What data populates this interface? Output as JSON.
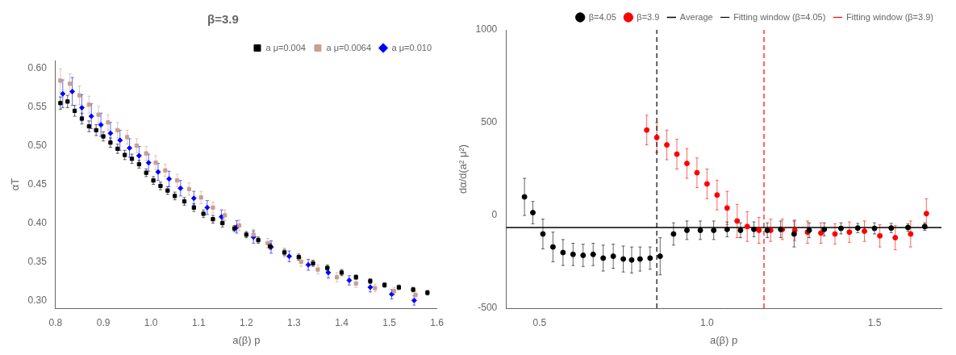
{
  "chart_data": [
    {
      "type": "scatter",
      "title": "β=3.9",
      "xlabel": "a(β) p",
      "ylabel": "αT",
      "xlim": [
        0.8,
        1.6
      ],
      "ylim": [
        0.29,
        0.61
      ],
      "xticks": [
        0.8,
        0.9,
        {
          "value": 1.0,
          "label": "1.0"
        },
        1.1,
        1.2,
        1.3,
        1.4,
        1.5,
        1.6
      ],
      "yticks": [
        {
          "value": 0.3,
          "label": "0.30"
        },
        0.35,
        {
          "value": 0.4,
          "label": "0.40"
        },
        0.45,
        {
          "value": 0.5,
          "label": "0.50"
        },
        0.55,
        {
          "value": 0.6,
          "label": "0.60"
        }
      ],
      "grid": false,
      "legend": "upper right",
      "series": [
        {
          "name": "a μ=0.004",
          "color": "black",
          "marker": "square",
          "x": [
            0.81,
            0.825,
            0.84,
            0.855,
            0.87,
            0.885,
            0.9,
            0.915,
            0.93,
            0.945,
            0.96,
            0.975,
            0.99,
            1.005,
            1.02,
            1.035,
            1.05,
            1.07,
            1.09,
            1.11,
            1.13,
            1.15,
            1.175,
            1.2,
            1.225,
            1.25,
            1.28,
            1.31,
            1.34,
            1.37,
            1.4,
            1.43,
            1.46,
            1.49,
            1.52,
            1.55,
            1.58
          ],
          "values": [
            0.555,
            0.557,
            0.545,
            0.535,
            0.525,
            0.52,
            0.512,
            0.504,
            0.496,
            0.488,
            0.483,
            0.476,
            0.465,
            0.455,
            0.448,
            0.442,
            0.435,
            0.428,
            0.42,
            0.412,
            0.405,
            0.4,
            0.393,
            0.385,
            0.378,
            0.37,
            0.362,
            0.356,
            0.348,
            0.342,
            0.336,
            0.33,
            0.325,
            0.32,
            0.317,
            0.314,
            0.31
          ],
          "errors": [
            0.008,
            0.008,
            0.007,
            0.007,
            0.007,
            0.007,
            0.006,
            0.006,
            0.006,
            0.006,
            0.006,
            0.005,
            0.005,
            0.005,
            0.005,
            0.005,
            0.005,
            0.005,
            0.005,
            0.005,
            0.005,
            0.005,
            0.004,
            0.004,
            0.004,
            0.004,
            0.004,
            0.004,
            0.004,
            0.004,
            0.004,
            0.003,
            0.003,
            0.003,
            0.003,
            0.003,
            0.003
          ]
        },
        {
          "name": "a μ=0.0064",
          "color": "#c8a090",
          "marker": "square",
          "x": [
            0.81,
            0.83,
            0.85,
            0.87,
            0.89,
            0.91,
            0.93,
            0.95,
            0.97,
            0.99,
            1.01,
            1.03,
            1.055,
            1.08,
            1.105,
            1.13,
            1.155,
            1.185,
            1.215,
            1.245,
            1.28,
            1.315,
            1.35,
            1.39,
            1.43,
            1.47,
            1.51,
            1.555
          ],
          "values": [
            0.584,
            0.58,
            0.565,
            0.553,
            0.54,
            0.53,
            0.52,
            0.511,
            0.5,
            0.49,
            0.478,
            0.468,
            0.455,
            0.444,
            0.433,
            0.42,
            0.41,
            0.397,
            0.385,
            0.374,
            0.362,
            0.35,
            0.34,
            0.33,
            0.322,
            0.316,
            0.312,
            0.307
          ],
          "errors": [
            0.015,
            0.013,
            0.012,
            0.011,
            0.011,
            0.01,
            0.01,
            0.009,
            0.009,
            0.009,
            0.009,
            0.008,
            0.008,
            0.008,
            0.008,
            0.007,
            0.007,
            0.007,
            0.007,
            0.006,
            0.006,
            0.006,
            0.006,
            0.006,
            0.005,
            0.005,
            0.005,
            0.005
          ]
        },
        {
          "name": "a μ=0.010",
          "color": "blue",
          "marker": "diamond",
          "x": [
            0.815,
            0.835,
            0.855,
            0.875,
            0.895,
            0.915,
            0.935,
            0.955,
            0.975,
            0.995,
            1.015,
            1.038,
            1.062,
            1.09,
            1.118,
            1.148,
            1.18,
            1.215,
            1.252,
            1.29,
            1.33,
            1.372,
            1.416,
            1.46,
            1.505,
            1.552
          ],
          "values": [
            0.567,
            0.57,
            0.549,
            0.538,
            0.527,
            0.516,
            0.507,
            0.497,
            0.487,
            0.478,
            0.466,
            0.457,
            0.445,
            0.432,
            0.42,
            0.408,
            0.395,
            0.382,
            0.369,
            0.357,
            0.346,
            0.336,
            0.326,
            0.317,
            0.308,
            0.3
          ],
          "errors": [
            0.018,
            0.018,
            0.017,
            0.016,
            0.015,
            0.014,
            0.013,
            0.012,
            0.012,
            0.011,
            0.011,
            0.01,
            0.01,
            0.009,
            0.009,
            0.009,
            0.008,
            0.008,
            0.008,
            0.007,
            0.007,
            0.007,
            0.006,
            0.006,
            0.006,
            0.006
          ]
        }
      ]
    },
    {
      "type": "scatter",
      "xlabel": "a(β) p",
      "ylabel": "dα/d(a² μ²)",
      "xlim": [
        0.4,
        1.7
      ],
      "ylim": [
        -500,
        1000
      ],
      "xticks": [
        0.5,
        {
          "value": 1.0,
          "label": "1.0"
        },
        1.5
      ],
      "yticks": [
        -500,
        0,
        500,
        1000
      ],
      "grid": false,
      "legend": "upper right",
      "series": [
        {
          "name": "β=4.05",
          "color": "black",
          "marker": "circle",
          "x": [
            0.455,
            0.48,
            0.51,
            0.54,
            0.57,
            0.6,
            0.63,
            0.66,
            0.69,
            0.72,
            0.75,
            0.775,
            0.8,
            0.83,
            0.86,
            0.9,
            0.94,
            0.98,
            1.02,
            1.06,
            1.1,
            1.14,
            1.18,
            1.22,
            1.26,
            1.305,
            1.35,
            1.4,
            1.45,
            1.5,
            1.55,
            1.6,
            1.65
          ],
          "values": [
            100,
            15,
            -100,
            -170,
            -200,
            -210,
            -215,
            -210,
            -230,
            -220,
            -235,
            -240,
            -235,
            -230,
            -220,
            -100,
            -80,
            -80,
            -80,
            -75,
            -80,
            -75,
            -80,
            -75,
            -100,
            -80,
            -75,
            -70,
            -68,
            -70,
            -68,
            -65,
            -60
          ],
          "errors": [
            100,
            60,
            80,
            80,
            70,
            60,
            60,
            60,
            70,
            65,
            70,
            70,
            65,
            60,
            100,
            60,
            50,
            50,
            50,
            40,
            40,
            40,
            40,
            45,
            70,
            40,
            35,
            30,
            25,
            30,
            25,
            20,
            20
          ]
        },
        {
          "name": "β=3.9",
          "color": "red",
          "marker": "circle",
          "x": [
            0.82,
            0.85,
            0.88,
            0.91,
            0.94,
            0.97,
            1.0,
            1.03,
            1.06,
            1.09,
            1.12,
            1.155,
            1.19,
            1.225,
            1.262,
            1.3,
            1.34,
            1.382,
            1.425,
            1.47,
            1.516,
            1.562,
            1.608,
            1.655
          ],
          "values": [
            460,
            420,
            380,
            330,
            280,
            230,
            170,
            110,
            40,
            -30,
            -60,
            -80,
            -80,
            -75,
            -80,
            -90,
            -95,
            -100,
            -90,
            -85,
            -110,
            -120,
            -100,
            10
          ],
          "errors": [
            80,
            80,
            80,
            80,
            80,
            80,
            80,
            80,
            90,
            90,
            80,
            70,
            60,
            55,
            55,
            60,
            55,
            55,
            55,
            55,
            60,
            65,
            70,
            80
          ]
        },
        {
          "name": "Average",
          "type": "hline",
          "color": "black",
          "line_style": "solid",
          "values": [
            -65
          ]
        },
        {
          "name": "Fitting window (β=4.05)",
          "type": "vline",
          "color": "black",
          "line_style": "dashed",
          "x": [
            0.85
          ]
        },
        {
          "name": "Fitting window (β=3.9)",
          "type": "vline",
          "color": "red",
          "line_style": "dashed",
          "x": [
            1.17
          ]
        }
      ]
    }
  ]
}
